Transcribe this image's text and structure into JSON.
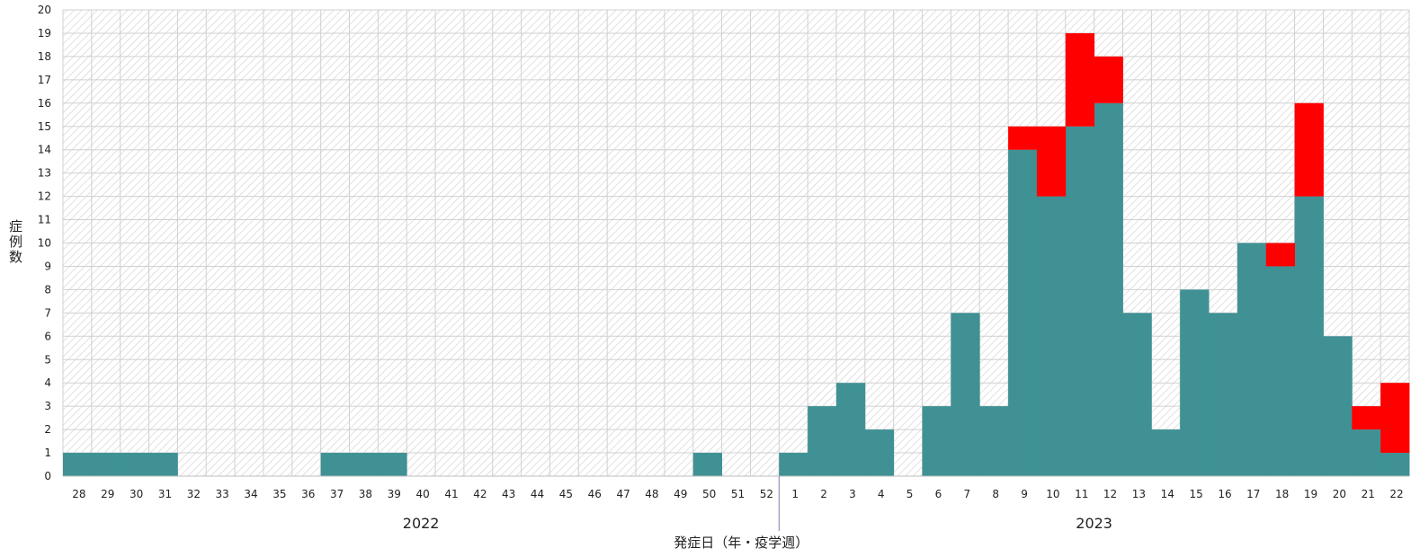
{
  "chart_data": {
    "type": "bar",
    "stacked": true,
    "categories": [
      "28",
      "29",
      "30",
      "31",
      "32",
      "33",
      "34",
      "35",
      "36",
      "37",
      "38",
      "39",
      "40",
      "41",
      "42",
      "43",
      "44",
      "45",
      "46",
      "47",
      "48",
      "49",
      "50",
      "51",
      "52",
      "1",
      "2",
      "3",
      "4",
      "5",
      "6",
      "7",
      "8",
      "9",
      "10",
      "11",
      "12",
      "13",
      "14",
      "15",
      "16",
      "17",
      "18",
      "19",
      "20",
      "21",
      "22"
    ],
    "series": [
      {
        "values": [
          1,
          1,
          1,
          1,
          0,
          0,
          0,
          0,
          0,
          1,
          1,
          1,
          0,
          0,
          0,
          0,
          0,
          0,
          0,
          0,
          0,
          0,
          1,
          0,
          0,
          1,
          3,
          4,
          2,
          0,
          3,
          7,
          3,
          14,
          12,
          15,
          16,
          7,
          2,
          8,
          7,
          10,
          9,
          12,
          6,
          2,
          1
        ],
        "color": "#3f9194"
      },
      {
        "values": [
          0,
          0,
          0,
          0,
          0,
          0,
          0,
          0,
          0,
          0,
          0,
          0,
          0,
          0,
          0,
          0,
          0,
          0,
          0,
          0,
          0,
          0,
          0,
          0,
          0,
          0,
          0,
          0,
          0,
          0,
          0,
          0,
          0,
          1,
          3,
          4,
          2,
          0,
          0,
          0,
          0,
          0,
          1,
          4,
          0,
          1,
          3
        ],
        "color": "#ff0000"
      }
    ],
    "year_labels": [
      "2022",
      "2023"
    ],
    "xlabel": "発症日（年・疫学週）",
    "ylabel": "症例数",
    "ylim": [
      0,
      20
    ],
    "yticks": [
      0,
      1,
      2,
      3,
      4,
      5,
      6,
      7,
      8,
      9,
      10,
      11,
      12,
      13,
      14,
      15,
      16,
      17,
      18,
      19,
      20
    ],
    "grid": true
  }
}
